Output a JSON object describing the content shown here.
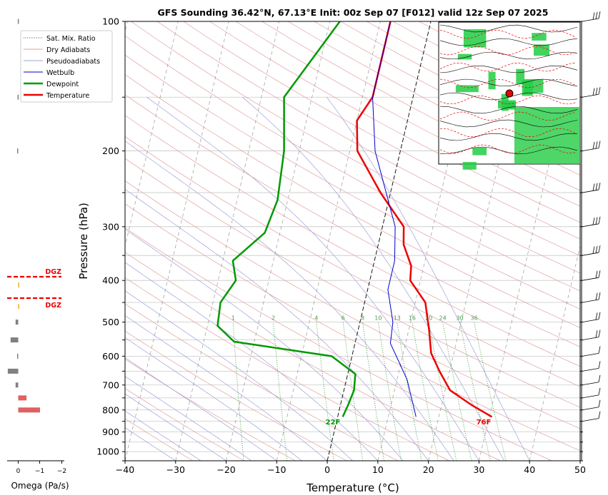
{
  "chart_data": {
    "type": "line",
    "subtype": "skew-t log-p sounding",
    "title": "GFS Sounding 36.42°N, 67.13°E Init: 00z Sep 07 [F012] valid 12z Sep 07 2025",
    "xlabel": "Temperature (°C)",
    "ylabel": "Pressure (hPa)",
    "xlim": [
      -40,
      50
    ],
    "ylim": [
      1050,
      100
    ],
    "y_scale": "log",
    "grid": true,
    "x_ticks": [
      -40,
      -30,
      -20,
      -10,
      0,
      10,
      20,
      30,
      40,
      50
    ],
    "y_ticks": [
      100,
      200,
      300,
      400,
      500,
      600,
      700,
      800,
      900,
      1000
    ],
    "legend_position": "upper-left",
    "legend": [
      "Sat. Mix. Ratio",
      "Dry Adiabats",
      "Pseudoadiabats",
      "Wetbulb",
      "Dewpoint",
      "Temperature"
    ],
    "mixing_ratio_labels": [
      "1",
      "2",
      "4",
      "6",
      "8",
      "10",
      "13",
      "16",
      "20",
      "24",
      "30",
      "36"
    ],
    "series": [
      {
        "name": "Temperature",
        "color": "#ee0000",
        "points": [
          [
            30.5,
            830
          ],
          [
            26,
            780
          ],
          [
            21,
            720
          ],
          [
            18,
            650
          ],
          [
            15.5,
            590
          ],
          [
            14,
            520
          ],
          [
            12,
            450
          ],
          [
            8,
            400
          ],
          [
            7.5,
            370
          ],
          [
            5,
            330
          ],
          [
            4.2,
            300
          ],
          [
            -2,
            250
          ],
          [
            -8.5,
            200
          ],
          [
            -10,
            170
          ],
          [
            -8,
            150
          ],
          [
            -8,
            100
          ]
        ]
      },
      {
        "name": "Dewpoint",
        "color": "#009900",
        "points": [
          [
            1,
            830
          ],
          [
            1.5,
            780
          ],
          [
            2,
            720
          ],
          [
            1.5,
            660
          ],
          [
            -4,
            600
          ],
          [
            -24,
            555
          ],
          [
            -28,
            510
          ],
          [
            -28.5,
            450
          ],
          [
            -26.5,
            400
          ],
          [
            -28,
            360
          ],
          [
            -23,
            310
          ],
          [
            -22,
            260
          ],
          [
            -23,
            200
          ],
          [
            -25.5,
            150
          ],
          [
            -18,
            100
          ]
        ]
      },
      {
        "name": "Wetbulb",
        "color": "#0000cc",
        "points": [
          [
            15.5,
            830
          ],
          [
            12,
            680
          ],
          [
            7,
            560
          ],
          [
            6.5,
            500
          ],
          [
            4,
            420
          ],
          [
            4,
            360
          ],
          [
            2.5,
            300
          ],
          [
            -5,
            200
          ],
          [
            -8,
            150
          ],
          [
            -8,
            100
          ]
        ]
      }
    ],
    "surface_labels": {
      "temperature": "76F",
      "dewpoint": "22F"
    },
    "omega_panel": {
      "xlabel": "Omega (Pa/s)",
      "x_ticks": [
        "0",
        "−1",
        "−2"
      ],
      "dgz_label": "DGZ",
      "dgz_bounds_hpa": [
        365,
        445
      ],
      "bars": [
        {
          "p": 100,
          "v": 0.02
        },
        {
          "p": 150,
          "v": 0.03
        },
        {
          "p": 200,
          "v": 0.05
        },
        {
          "p": 410,
          "v": -0.02
        },
        {
          "p": 460,
          "v": -0.03
        },
        {
          "p": 500,
          "v": 0.12
        },
        {
          "p": 550,
          "v": 0.35
        },
        {
          "p": 600,
          "v": 0.05
        },
        {
          "p": 650,
          "v": 0.48
        },
        {
          "p": 700,
          "v": 0.12
        },
        {
          "p": 750,
          "v": -0.38
        },
        {
          "p": 800,
          "v": -1.0
        }
      ]
    },
    "inset_map": {
      "description_hidden": true
    }
  }
}
